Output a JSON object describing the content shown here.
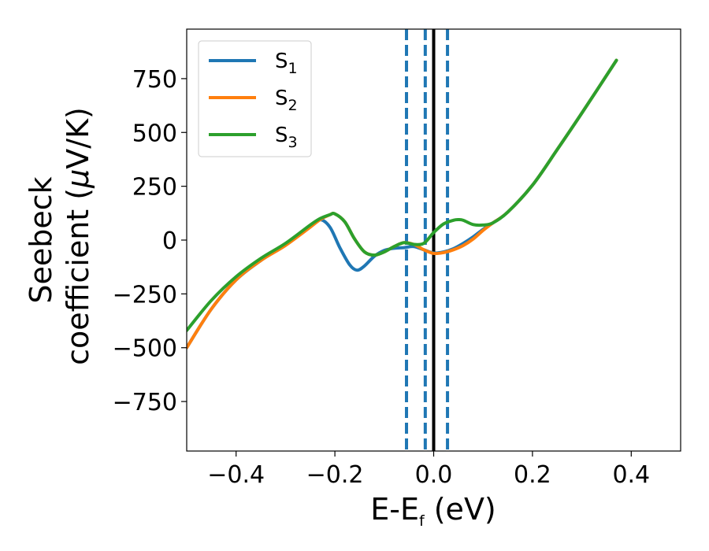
{
  "chart_data": {
    "type": "line",
    "title": "",
    "xlabel": {
      "main": "E-E",
      "sub": "f",
      "suffix": " (eV)"
    },
    "ylabel": {
      "line1": "Seebeck",
      "line2_prefix": "coefficient  (",
      "mu": "μ",
      "line2_suffix": "V/K)"
    },
    "xlim": [
      -0.5,
      0.5
    ],
    "ylim": [
      -980,
      980
    ],
    "xticks": [
      {
        "value": -0.4,
        "label": "−0.4"
      },
      {
        "value": -0.2,
        "label": "−0.2"
      },
      {
        "value": 0.0,
        "label": "0.0"
      },
      {
        "value": 0.2,
        "label": "0.2"
      },
      {
        "value": 0.4,
        "label": "0.4"
      }
    ],
    "yticks": [
      {
        "value": 750,
        "label": "750"
      },
      {
        "value": 500,
        "label": "500"
      },
      {
        "value": 250,
        "label": "250"
      },
      {
        "value": 0,
        "label": "0"
      },
      {
        "value": -250,
        "label": "−250"
      },
      {
        "value": -500,
        "label": "−500"
      },
      {
        "value": -750,
        "label": "−750"
      }
    ],
    "grid": false,
    "legend": "top-left",
    "vlines": [
      {
        "x": 0.0,
        "color": "#000000",
        "style": "solid"
      },
      {
        "x": -0.055,
        "color": "#1f77b4",
        "style": "dashed"
      },
      {
        "x": -0.017,
        "color": "#1f77b4",
        "style": "dashed"
      },
      {
        "x": 0.028,
        "color": "#1f77b4",
        "style": "dashed"
      }
    ],
    "series": [
      {
        "name": "S",
        "sub": "1",
        "color": "#1f77b4",
        "x": [
          -0.5,
          -0.45,
          -0.4,
          -0.35,
          -0.3,
          -0.25,
          -0.23,
          -0.21,
          -0.19,
          -0.17,
          -0.155,
          -0.14,
          -0.12,
          -0.1,
          -0.08,
          -0.06,
          -0.04,
          -0.02,
          0.0,
          0.02,
          0.04,
          0.06,
          0.08,
          0.1,
          0.12,
          0.15,
          0.2,
          0.25,
          0.3,
          0.37
        ],
        "y": [
          -500,
          -320,
          -185,
          -95,
          -20,
          65,
          95,
          60,
          -35,
          -115,
          -140,
          -120,
          -75,
          -48,
          -38,
          -35,
          -30,
          -45,
          -60,
          -55,
          -40,
          -15,
          15,
          50,
          80,
          130,
          255,
          420,
          590,
          835
        ]
      },
      {
        "name": "S",
        "sub": "2",
        "color": "#ff7f0e",
        "x": [
          -0.5,
          -0.45,
          -0.4,
          -0.35,
          -0.3,
          -0.25,
          -0.23,
          -0.21,
          -0.2,
          -0.18,
          -0.16,
          -0.14,
          -0.12,
          -0.1,
          -0.08,
          -0.06,
          -0.04,
          -0.02,
          0.0,
          0.02,
          0.04,
          0.06,
          0.08,
          0.1,
          0.12,
          0.15,
          0.2,
          0.25,
          0.3,
          0.37
        ],
        "y": [
          -500,
          -320,
          -185,
          -95,
          -25,
          60,
          95,
          118,
          122,
          85,
          5,
          -55,
          -70,
          -55,
          -30,
          -12,
          -20,
          -45,
          -62,
          -58,
          -45,
          -25,
          5,
          45,
          80,
          130,
          255,
          420,
          590,
          835
        ]
      },
      {
        "name": "S",
        "sub": "3",
        "color": "#2ca02c",
        "x": [
          -0.5,
          -0.45,
          -0.4,
          -0.35,
          -0.3,
          -0.25,
          -0.23,
          -0.21,
          -0.2,
          -0.18,
          -0.16,
          -0.14,
          -0.12,
          -0.1,
          -0.08,
          -0.06,
          -0.04,
          -0.02,
          0.0,
          0.02,
          0.04,
          0.05,
          0.06,
          0.08,
          0.1,
          0.12,
          0.15,
          0.2,
          0.25,
          0.3,
          0.37
        ],
        "y": [
          -420,
          -280,
          -170,
          -85,
          -15,
          70,
          100,
          118,
          122,
          85,
          5,
          -55,
          -70,
          -55,
          -30,
          -12,
          -20,
          -15,
          35,
          75,
          92,
          95,
          92,
          72,
          70,
          80,
          130,
          255,
          420,
          590,
          835
        ]
      }
    ]
  }
}
